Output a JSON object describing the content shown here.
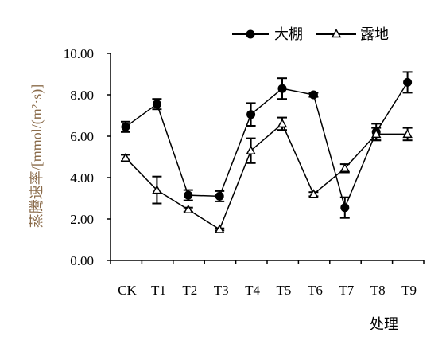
{
  "chart_data": {
    "type": "line",
    "categories": [
      "CK",
      "T1",
      "T2",
      "T3",
      "T4",
      "T5",
      "T6",
      "T7",
      "T8",
      "T9"
    ],
    "ylabel": "蒸腾速率/[mmol/(m²·s)]",
    "xlabel": "处理",
    "ylim": [
      0,
      10
    ],
    "yticks": [
      "0.00",
      "2.00",
      "4.00",
      "6.00",
      "8.00",
      "10.00"
    ],
    "legend_position": "top-right",
    "series": [
      {
        "name": "大棚",
        "marker": "filled-circle",
        "values": [
          6.45,
          7.55,
          3.15,
          3.1,
          7.05,
          8.3,
          8.0,
          2.55,
          6.2,
          8.6
        ],
        "errors": [
          0.25,
          0.25,
          0.25,
          0.25,
          0.55,
          0.5,
          0.1,
          0.5,
          0.4,
          0.5
        ]
      },
      {
        "name": "露地",
        "marker": "open-triangle",
        "values": [
          4.95,
          3.4,
          2.45,
          1.5,
          5.3,
          6.6,
          3.2,
          4.45,
          6.1,
          6.1
        ],
        "errors": [
          0.15,
          0.65,
          0.1,
          0.05,
          0.6,
          0.3,
          0.1,
          0.2,
          0.3,
          0.3
        ]
      }
    ]
  }
}
